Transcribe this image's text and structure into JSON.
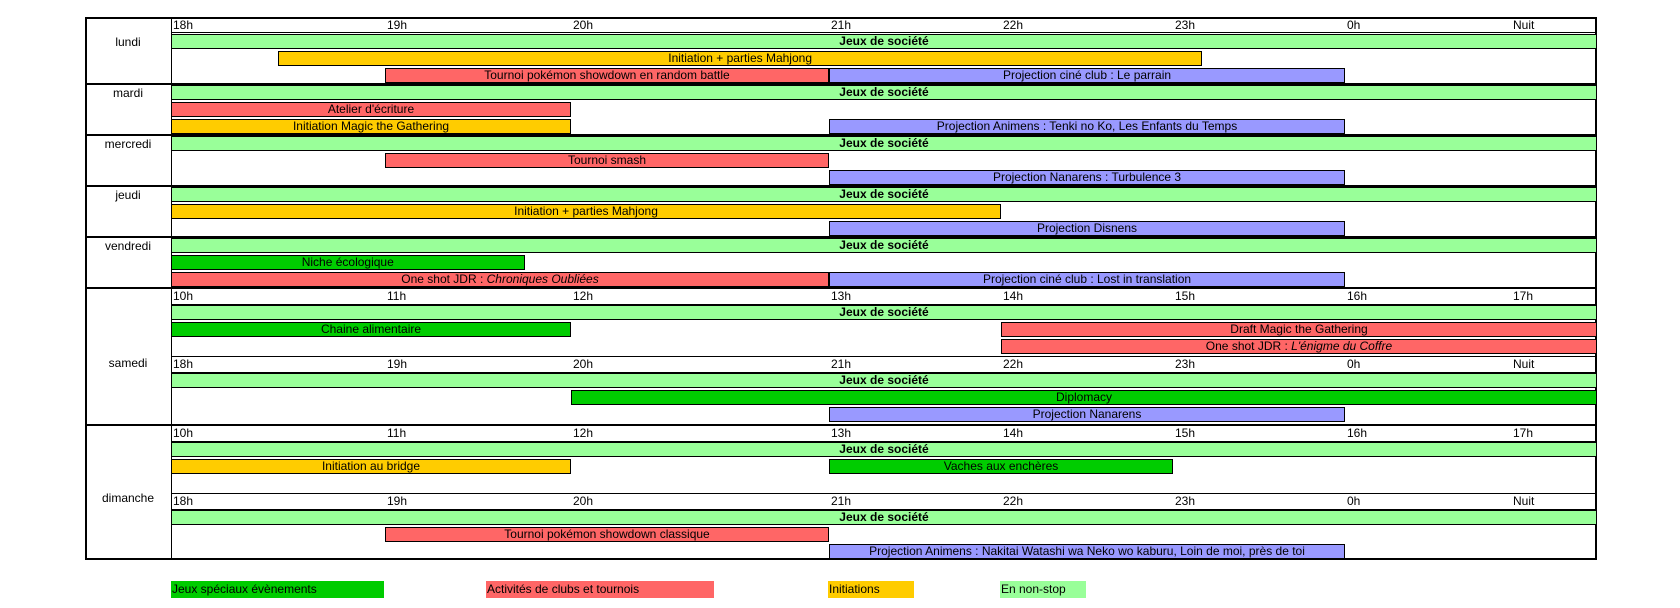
{
  "colors": {
    "special": "#00CC00",
    "clubs": "#FF6666",
    "init": "#FFCC00",
    "nonstop": "#99FF99",
    "projection": "#9999FF"
  },
  "days": [
    "lundi",
    "mardi",
    "mercredi",
    "jeudi",
    "vendredi",
    "samedi",
    "dimanche"
  ],
  "ticks_evening": [
    "18h",
    "19h",
    "20h",
    "21h",
    "22h",
    "23h",
    "0h",
    "Nuit"
  ],
  "ticks_day": [
    "10h",
    "11h",
    "12h",
    "13h",
    "14h",
    "15h",
    "16h",
    "17h"
  ],
  "rows": {
    "lundi": [
      {
        "label": "Jeux de société",
        "cat": "nonstop",
        "start": 18,
        "end": 26,
        "bold": true
      },
      {
        "label": "Initiation + parties Mahjong",
        "cat": "init",
        "start": 18.5,
        "end": 23.17
      },
      {
        "label": "Tournoi pokémon showdown en random battle",
        "cat": "clubs",
        "start": 19,
        "end": 21
      },
      {
        "label": "Projection ciné club : Le parrain",
        "cat": "projection",
        "start": 21,
        "end": 24
      }
    ],
    "mardi": [
      {
        "label": "Jeux de société",
        "cat": "nonstop",
        "start": 18,
        "end": 26,
        "bold": true
      },
      {
        "label": "Atelier d'écriture",
        "cat": "clubs",
        "start": 18,
        "end": 20
      },
      {
        "label": "Initiation Magic the Gathering",
        "cat": "init",
        "start": 18,
        "end": 20
      },
      {
        "label": "Projection Animens : Tenki no Ko, Les Enfants du Temps",
        "cat": "projection",
        "start": 21,
        "end": 24
      }
    ],
    "mercredi": [
      {
        "label": "Jeux de société",
        "cat": "nonstop",
        "start": 18,
        "end": 26,
        "bold": true
      },
      {
        "label": "Tournoi smash",
        "cat": "clubs",
        "start": 19,
        "end": 21
      },
      {
        "label": "Projection Nanarens : Turbulence 3",
        "cat": "projection",
        "start": 21,
        "end": 24
      }
    ],
    "jeudi": [
      {
        "label": "Jeux de société",
        "cat": "nonstop",
        "start": 18,
        "end": 26,
        "bold": true
      },
      {
        "label": "Initiation + parties Mahjong",
        "cat": "init",
        "start": 18,
        "end": 22
      },
      {
        "label": "Projection Disnens",
        "cat": "projection",
        "start": 21,
        "end": 24
      }
    ],
    "vendredi": [
      {
        "label": "Jeux de société",
        "cat": "nonstop",
        "start": 18,
        "end": 26,
        "bold": true
      },
      {
        "label": "Niche écologique",
        "cat": "special",
        "start": 18,
        "end": 19.75
      },
      {
        "label": "One shot JDR : ",
        "italic": "Chroniques Oubliées",
        "cat": "clubs",
        "start": 18,
        "end": 21
      },
      {
        "label": "Projection ciné club : Lost in translation",
        "cat": "projection",
        "start": 21,
        "end": 24
      }
    ],
    "samedi_day": [
      {
        "label": "Jeux de société",
        "cat": "nonstop",
        "start": 10,
        "end": 18,
        "bold": true
      },
      {
        "label": "Chaine alimentaire",
        "cat": "special",
        "start": 10,
        "end": 12
      },
      {
        "label": "Draft Magic the Gathering",
        "cat": "clubs",
        "start": 14,
        "end": 18
      },
      {
        "label": "One shot JDR : ",
        "italic": "L'énigme du Coffre",
        "cat": "clubs",
        "start": 14,
        "end": 18
      }
    ],
    "samedi_evening": [
      {
        "label": "Jeux de société",
        "cat": "nonstop",
        "start": 18,
        "end": 26,
        "bold": true
      },
      {
        "label": "Diplomacy",
        "cat": "special",
        "start": 20,
        "end": 26
      },
      {
        "label": "Projection Nanarens",
        "cat": "projection",
        "start": 21,
        "end": 24
      }
    ],
    "dimanche_day": [
      {
        "label": "Jeux de société",
        "cat": "nonstop",
        "start": 10,
        "end": 18,
        "bold": true
      },
      {
        "label": "Initiation au bridge",
        "cat": "init",
        "start": 10,
        "end": 12
      },
      {
        "label": "Vaches aux enchères",
        "cat": "special",
        "start": 13,
        "end": 15
      }
    ],
    "dimanche_evening": [
      {
        "label": "Jeux de société",
        "cat": "nonstop",
        "start": 18,
        "end": 26,
        "bold": true
      },
      {
        "label": "Tournoi pokémon showdown classique",
        "cat": "clubs",
        "start": 19,
        "end": 21
      },
      {
        "label": "Projection Animens : Nakitai Watashi wa Neko wo kaburu, Loin de moi, près de toi",
        "cat": "projection",
        "start": 21,
        "end": 24
      }
    ]
  },
  "legend": [
    {
      "label": "Jeux spéciaux évènements",
      "cat": "special"
    },
    {
      "label": "Activités de clubs et tournois",
      "cat": "clubs"
    },
    {
      "label": "Initiations",
      "cat": "init"
    },
    {
      "label": "En non-stop",
      "cat": "nonstop"
    }
  ]
}
